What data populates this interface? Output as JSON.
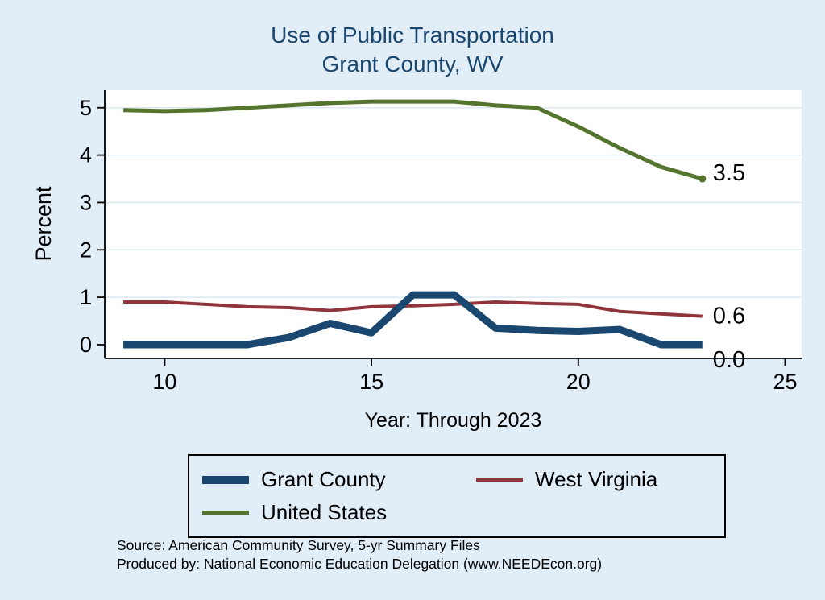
{
  "title": {
    "line1": "Use of Public Transportation",
    "line2": "Grant County, WV"
  },
  "axes": {
    "y_label": "Percent",
    "x_label": "Year: Through 2023",
    "x_ticks": [
      10,
      15,
      20,
      25
    ],
    "y_ticks": [
      0,
      1,
      2,
      3,
      4,
      5
    ]
  },
  "chart_data": {
    "type": "line",
    "title": "Use of Public Transportation, Grant County, WV",
    "xlabel": "Year: Through 2023",
    "ylabel": "Percent",
    "xlim": [
      8.55,
      25.4
    ],
    "ylim": [
      -0.29,
      5.37
    ],
    "grid": "horizontal",
    "legend_position": "bottom",
    "x": [
      9,
      10,
      11,
      12,
      13,
      14,
      15,
      16,
      17,
      18,
      19,
      20,
      21,
      22,
      23
    ],
    "series": [
      {
        "name": "Grant County",
        "color": "#1a476f",
        "width": 9,
        "values": [
          0,
          0,
          0,
          0,
          0.15,
          0.45,
          0.25,
          1.05,
          1.05,
          0.35,
          0.3,
          0.28,
          0.32,
          0,
          0
        ],
        "end_label": "0.0"
      },
      {
        "name": "West Virginia",
        "color": "#90353b",
        "width": 4,
        "values": [
          0.9,
          0.9,
          0.85,
          0.8,
          0.78,
          0.72,
          0.8,
          0.82,
          0.85,
          0.9,
          0.87,
          0.85,
          0.7,
          0.65,
          0.6
        ],
        "end_label": "0.6"
      },
      {
        "name": "United States",
        "color": "#55752f",
        "width": 5,
        "values": [
          4.95,
          4.93,
          4.95,
          5.0,
          5.05,
          5.1,
          5.13,
          5.13,
          5.13,
          5.05,
          5.0,
          4.6,
          4.15,
          3.75,
          3.5
        ],
        "end_label": "3.5",
        "end_dot": true
      }
    ]
  },
  "legend": {
    "items": [
      {
        "label": "Grant County"
      },
      {
        "label": "West Virginia"
      },
      {
        "label": "United States"
      }
    ]
  },
  "footer": {
    "line1": "Source: American Community Survey, 5-yr Summary Files",
    "line2": "Produced by: National Economic Education Delegation (www.NEEDEcon.org)"
  }
}
